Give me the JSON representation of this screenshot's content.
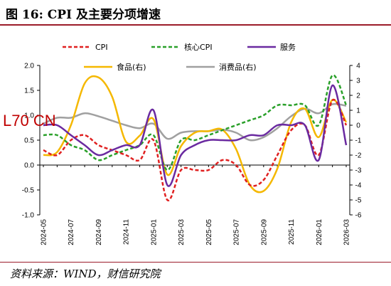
{
  "title": "图 16:  CPI 及主要分项增速",
  "source": "资料来源：WIND，财信研究院",
  "watermark": "L70 CN",
  "chart_data": {
    "type": "line",
    "title": "",
    "x": [
      "2024-05",
      "2024-06",
      "2024-07",
      "2024-08",
      "2024-09",
      "2024-10",
      "2024-11",
      "2024-12",
      "2025-01",
      "2025-02",
      "2025-03",
      "2025-04",
      "2025-05",
      "2025-06",
      "2025-07",
      "2025-08",
      "2025-09",
      "2025-10",
      "2025-11",
      "2025-12",
      "2026-01",
      "2026-02",
      "2026-03"
    ],
    "xticks": [
      "2024-05",
      "2024-07",
      "2024-09",
      "2024-11",
      "2025-01",
      "2025-03",
      "2025-05",
      "2025-07",
      "2025-09",
      "2025-11",
      "2026-01",
      "2026-03"
    ],
    "ylim_left": [
      -1.0,
      2.0
    ],
    "yticks_left": [
      "2.0",
      "1.5",
      "1.0",
      "0.5",
      "0.0",
      "-0.5",
      "-1.0"
    ],
    "ylim_right": [
      -6,
      4
    ],
    "yticks_right": [
      "4",
      "3",
      "2",
      "1",
      "0",
      "-1",
      "-2",
      "-3",
      "-4",
      "-5",
      "-6"
    ],
    "series": [
      {
        "name": "CPI",
        "axis": "left",
        "color": "#e02020",
        "dash": "5,3",
        "values": [
          0.3,
          0.2,
          0.5,
          0.6,
          0.4,
          0.3,
          0.2,
          0.1,
          0.5,
          -0.7,
          -0.1,
          -0.1,
          -0.1,
          0.1,
          0.0,
          -0.4,
          -0.3,
          0.2,
          0.7,
          0.8,
          0.2,
          1.3,
          0.8
        ]
      },
      {
        "name": "核心CPI",
        "axis": "left",
        "color": "#2aa02a",
        "dash": "5,3",
        "values": [
          0.6,
          0.6,
          0.4,
          0.3,
          0.1,
          0.2,
          0.3,
          0.4,
          0.6,
          -0.1,
          0.5,
          0.5,
          0.6,
          0.7,
          0.8,
          0.9,
          1.0,
          1.2,
          1.2,
          1.2,
          0.8,
          1.8,
          1.2
        ]
      },
      {
        "name": "服务",
        "axis": "left",
        "color": "#6a2aa0",
        "dash": "",
        "values": [
          0.8,
          0.8,
          0.6,
          0.4,
          0.2,
          0.3,
          0.4,
          0.4,
          1.1,
          -0.4,
          0.2,
          0.4,
          0.5,
          0.5,
          0.5,
          0.6,
          0.6,
          0.8,
          0.8,
          0.8,
          0.1,
          1.6,
          0.4
        ]
      },
      {
        "name": "食品(右)",
        "axis": "right",
        "color": "#f5b800",
        "dash": "",
        "values": [
          -2.0,
          -1.8,
          0.0,
          2.8,
          3.2,
          1.9,
          -1.1,
          -0.7,
          0.4,
          -3.3,
          -1.4,
          -0.5,
          -0.4,
          -0.3,
          -1.6,
          -4.0,
          -4.4,
          -2.9,
          0.2,
          1.1,
          -0.8,
          1.7,
          0.2
        ]
      },
      {
        "name": "消费品(右)",
        "axis": "right",
        "color": "#a0a0a0",
        "dash": "",
        "values": [
          0.1,
          0.5,
          0.5,
          0.8,
          0.6,
          0.3,
          0.0,
          -0.2,
          0.1,
          -0.9,
          -0.5,
          -0.4,
          -0.4,
          -0.3,
          -0.5,
          -1.0,
          -0.8,
          -0.2,
          0.6,
          1.1,
          0.8,
          1.4,
          1.3
        ]
      }
    ]
  }
}
